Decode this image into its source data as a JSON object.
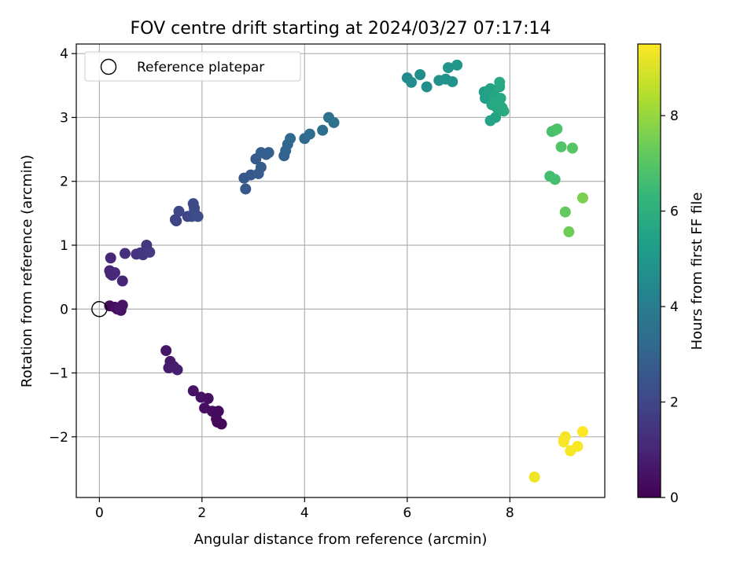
{
  "chart_data": {
    "type": "scatter",
    "title": "FOV centre drift starting at 2024/03/27 07:17:14",
    "xlabel": "Angular distance from reference (arcmin)",
    "ylabel": "Rotation from reference (arcmin)",
    "xlim": [
      -0.45,
      9.85
    ],
    "ylim": [
      -2.95,
      4.15
    ],
    "xticks": [
      0,
      2,
      4,
      6,
      8
    ],
    "yticks": [
      -2,
      -1,
      0,
      1,
      2,
      3,
      4
    ],
    "grid": true,
    "legend": {
      "placement": "upper-left",
      "entries": [
        {
          "label": "Reference platepar",
          "marker": "open-circle"
        }
      ]
    },
    "reference_point": {
      "x": 0,
      "y": 0
    },
    "colorbar": {
      "label": "Hours from first FF file",
      "colormap": "viridis",
      "range": [
        0,
        9.5
      ],
      "ticks": [
        0,
        2,
        4,
        6,
        8
      ]
    },
    "series": [
      {
        "points": [
          {
            "x": 0.2,
            "y": 0.05,
            "c": 0.3
          },
          {
            "x": 0.3,
            "y": 0.03,
            "c": 0.35
          },
          {
            "x": 0.35,
            "y": 0.0,
            "c": 0.4
          },
          {
            "x": 0.42,
            "y": -0.02,
            "c": 0.45
          },
          {
            "x": 0.45,
            "y": 0.06,
            "c": 0.5
          },
          {
            "x": 0.4,
            "y": 0.02,
            "c": 0.55
          },
          {
            "x": 1.3,
            "y": -0.65,
            "c": 0.6
          },
          {
            "x": 1.38,
            "y": -0.82,
            "c": 0.65
          },
          {
            "x": 1.35,
            "y": -0.92,
            "c": 0.7
          },
          {
            "x": 1.45,
            "y": -0.9,
            "c": 0.75
          },
          {
            "x": 1.52,
            "y": -0.95,
            "c": 0.8
          },
          {
            "x": 1.83,
            "y": -1.28,
            "c": 0.5
          },
          {
            "x": 1.98,
            "y": -1.38,
            "c": 0.45
          },
          {
            "x": 2.12,
            "y": -1.4,
            "c": 0.4
          },
          {
            "x": 2.05,
            "y": -1.55,
            "c": 0.4
          },
          {
            "x": 2.2,
            "y": -1.6,
            "c": 0.35
          },
          {
            "x": 2.32,
            "y": -1.6,
            "c": 0.3
          },
          {
            "x": 2.28,
            "y": -1.72,
            "c": 0.3
          },
          {
            "x": 2.3,
            "y": -1.77,
            "c": 0.25
          },
          {
            "x": 2.38,
            "y": -1.8,
            "c": 0.2
          },
          {
            "x": 0.22,
            "y": 0.8,
            "c": 1.1
          },
          {
            "x": 0.2,
            "y": 0.6,
            "c": 1.0
          },
          {
            "x": 0.22,
            "y": 0.55,
            "c": 1.0
          },
          {
            "x": 0.25,
            "y": 0.53,
            "c": 1.05
          },
          {
            "x": 0.3,
            "y": 0.57,
            "c": 1.1
          },
          {
            "x": 0.45,
            "y": 0.44,
            "c": 1.0
          },
          {
            "x": 0.5,
            "y": 0.87,
            "c": 1.3
          },
          {
            "x": 0.72,
            "y": 0.86,
            "c": 1.4
          },
          {
            "x": 0.8,
            "y": 0.88,
            "c": 1.45
          },
          {
            "x": 0.85,
            "y": 0.85,
            "c": 1.5
          },
          {
            "x": 0.92,
            "y": 1.0,
            "c": 1.55
          },
          {
            "x": 0.98,
            "y": 0.89,
            "c": 1.6
          },
          {
            "x": 1.48,
            "y": 1.4,
            "c": 1.9
          },
          {
            "x": 1.5,
            "y": 1.38,
            "c": 1.95
          },
          {
            "x": 1.55,
            "y": 1.53,
            "c": 2.0
          },
          {
            "x": 1.72,
            "y": 1.45,
            "c": 2.0
          },
          {
            "x": 1.8,
            "y": 1.45,
            "c": 2.05
          },
          {
            "x": 1.83,
            "y": 1.65,
            "c": 2.1
          },
          {
            "x": 1.85,
            "y": 1.58,
            "c": 2.15
          },
          {
            "x": 1.85,
            "y": 1.52,
            "c": 2.15
          },
          {
            "x": 1.92,
            "y": 1.45,
            "c": 2.2
          },
          {
            "x": 2.82,
            "y": 2.05,
            "c": 2.6
          },
          {
            "x": 2.85,
            "y": 1.88,
            "c": 2.6
          },
          {
            "x": 2.95,
            "y": 2.1,
            "c": 2.65
          },
          {
            "x": 3.05,
            "y": 2.35,
            "c": 2.7
          },
          {
            "x": 3.1,
            "y": 2.12,
            "c": 2.7
          },
          {
            "x": 3.15,
            "y": 2.22,
            "c": 2.75
          },
          {
            "x": 3.15,
            "y": 2.45,
            "c": 2.8
          },
          {
            "x": 3.25,
            "y": 2.42,
            "c": 2.85
          },
          {
            "x": 3.3,
            "y": 2.45,
            "c": 2.9
          },
          {
            "x": 3.6,
            "y": 2.4,
            "c": 3.0
          },
          {
            "x": 3.63,
            "y": 2.48,
            "c": 3.05
          },
          {
            "x": 3.67,
            "y": 2.58,
            "c": 3.1
          },
          {
            "x": 3.72,
            "y": 2.67,
            "c": 3.15
          },
          {
            "x": 4.0,
            "y": 2.67,
            "c": 3.3
          },
          {
            "x": 4.1,
            "y": 2.74,
            "c": 3.35
          },
          {
            "x": 4.35,
            "y": 2.8,
            "c": 3.4
          },
          {
            "x": 4.47,
            "y": 3.0,
            "c": 3.5
          },
          {
            "x": 4.57,
            "y": 2.92,
            "c": 3.55
          },
          {
            "x": 6.0,
            "y": 3.62,
            "c": 4.5
          },
          {
            "x": 6.08,
            "y": 3.55,
            "c": 4.6
          },
          {
            "x": 6.25,
            "y": 3.67,
            "c": 4.65
          },
          {
            "x": 6.38,
            "y": 3.48,
            "c": 4.7
          },
          {
            "x": 6.62,
            "y": 3.58,
            "c": 4.8
          },
          {
            "x": 6.75,
            "y": 3.6,
            "c": 4.85
          },
          {
            "x": 6.8,
            "y": 3.78,
            "c": 4.9
          },
          {
            "x": 6.88,
            "y": 3.56,
            "c": 4.95
          },
          {
            "x": 6.97,
            "y": 3.82,
            "c": 5.0
          },
          {
            "x": 7.5,
            "y": 3.4,
            "c": 5.3
          },
          {
            "x": 7.52,
            "y": 3.3,
            "c": 5.35
          },
          {
            "x": 7.58,
            "y": 3.42,
            "c": 5.4
          },
          {
            "x": 7.62,
            "y": 3.45,
            "c": 5.45
          },
          {
            "x": 7.65,
            "y": 3.2,
            "c": 5.5
          },
          {
            "x": 7.62,
            "y": 2.95,
            "c": 5.5
          },
          {
            "x": 7.72,
            "y": 3.0,
            "c": 5.55
          },
          {
            "x": 7.7,
            "y": 3.35,
            "c": 5.6
          },
          {
            "x": 7.75,
            "y": 3.15,
            "c": 5.6
          },
          {
            "x": 7.8,
            "y": 3.48,
            "c": 5.65
          },
          {
            "x": 7.8,
            "y": 3.55,
            "c": 5.7
          },
          {
            "x": 7.82,
            "y": 3.3,
            "c": 5.7
          },
          {
            "x": 7.85,
            "y": 3.15,
            "c": 5.75
          },
          {
            "x": 7.88,
            "y": 3.1,
            "c": 5.8
          },
          {
            "x": 7.8,
            "y": 3.2,
            "c": 5.75
          },
          {
            "x": 7.68,
            "y": 3.22,
            "c": 5.7
          },
          {
            "x": 8.78,
            "y": 2.08,
            "c": 6.6
          },
          {
            "x": 8.88,
            "y": 2.03,
            "c": 6.65
          },
          {
            "x": 8.82,
            "y": 2.78,
            "c": 6.7
          },
          {
            "x": 8.88,
            "y": 2.8,
            "c": 6.75
          },
          {
            "x": 8.92,
            "y": 2.82,
            "c": 6.8
          },
          {
            "x": 9.0,
            "y": 2.54,
            "c": 6.9
          },
          {
            "x": 9.22,
            "y": 2.52,
            "c": 7.0
          },
          {
            "x": 9.08,
            "y": 1.52,
            "c": 7.2
          },
          {
            "x": 9.15,
            "y": 1.21,
            "c": 7.4
          },
          {
            "x": 9.42,
            "y": 1.74,
            "c": 7.6
          },
          {
            "x": 8.48,
            "y": -2.63,
            "c": 9.3
          },
          {
            "x": 9.05,
            "y": -2.05,
            "c": 9.35
          },
          {
            "x": 9.08,
            "y": -2.0,
            "c": 9.35
          },
          {
            "x": 9.05,
            "y": -2.08,
            "c": 9.4
          },
          {
            "x": 9.18,
            "y": -2.22,
            "c": 9.4
          },
          {
            "x": 9.32,
            "y": -2.15,
            "c": 9.45
          },
          {
            "x": 9.42,
            "y": -1.92,
            "c": 9.5
          }
        ]
      }
    ],
    "colors": {
      "axes": "#000000",
      "grid": "#b0b0b0",
      "legend_border": "#cccccc"
    }
  }
}
